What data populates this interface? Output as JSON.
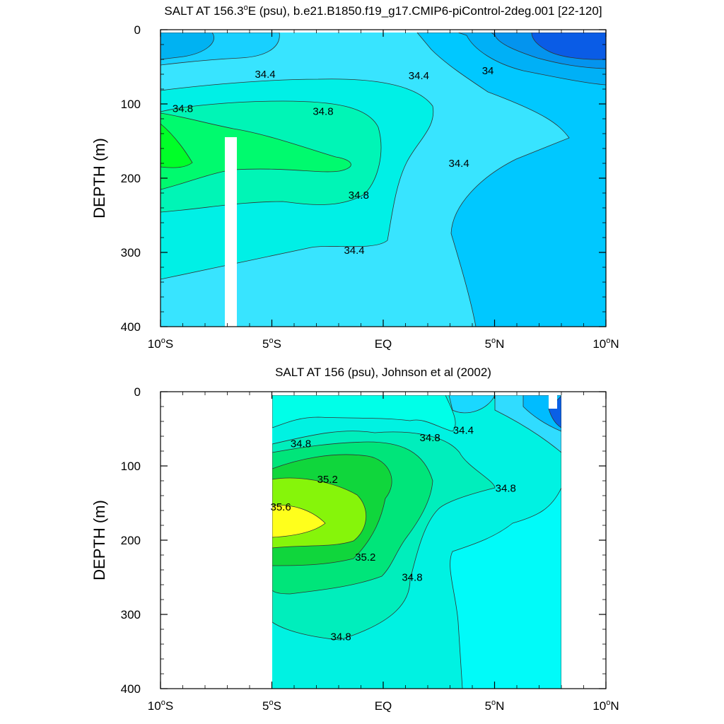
{
  "chart_data": [
    {
      "type": "contour",
      "title": "SALT AT 156.3°E (psu), b.e21.B1850.f19_g17.CMIP6-piControl-2deg.001 [22-120]",
      "title_main": "SALT AT 156.3",
      "title_sup": "o",
      "title_rest": "E (psu), b.e21.B1850.f19_g17.CMIP6-piControl-2deg.001 [22-120]",
      "xlabel": "",
      "ylabel": "DEPTH (m)",
      "xlim": [
        -10,
        10
      ],
      "ylim": [
        400,
        0
      ],
      "x_ticks": [
        {
          "value": -10,
          "label": "10",
          "sup": "o",
          "hemi": "S"
        },
        {
          "value": -5,
          "label": "5",
          "sup": "o",
          "hemi": "S"
        },
        {
          "value": 0,
          "label": "EQ",
          "sup": "",
          "hemi": ""
        },
        {
          "value": 5,
          "label": "5",
          "sup": "o",
          "hemi": "N"
        },
        {
          "value": 10,
          "label": "10",
          "sup": "o",
          "hemi": "N"
        }
      ],
      "y_ticks": [
        "0",
        "100",
        "200",
        "300",
        "400"
      ],
      "contour_labels": [
        {
          "text": "34.4",
          "lon": -5.3,
          "depth": 60
        },
        {
          "text": "34.4",
          "lon": 1.6,
          "depth": 62
        },
        {
          "text": "34",
          "lon": 4.7,
          "depth": 55
        },
        {
          "text": "34.8",
          "lon": -9.0,
          "depth": 106
        },
        {
          "text": "34.8",
          "lon": -2.7,
          "depth": 110
        },
        {
          "text": "34.4",
          "lon": 3.4,
          "depth": 180
        },
        {
          "text": "34.8",
          "lon": -1.1,
          "depth": 223
        },
        {
          "text": "34.4",
          "lon": -1.3,
          "depth": 297
        }
      ]
    },
    {
      "type": "contour",
      "title": "SALT AT 156 (psu), Johnson et al (2002)",
      "xlabel": "",
      "ylabel": "DEPTH (m)",
      "xlim": [
        -10,
        10
      ],
      "ylim": [
        400,
        0
      ],
      "x_ticks": [
        {
          "value": -10,
          "label": "10",
          "sup": "o",
          "hemi": "S"
        },
        {
          "value": -5,
          "label": "5",
          "sup": "o",
          "hemi": "S"
        },
        {
          "value": 0,
          "label": "EQ",
          "sup": "",
          "hemi": ""
        },
        {
          "value": 5,
          "label": "5",
          "sup": "o",
          "hemi": "N"
        },
        {
          "value": 10,
          "label": "10",
          "sup": "o",
          "hemi": "N"
        }
      ],
      "y_ticks": [
        "0",
        "100",
        "200",
        "300",
        "400"
      ],
      "contour_labels": [
        {
          "text": "34.8",
          "lon": -3.7,
          "depth": 70
        },
        {
          "text": "34.8",
          "lon": 2.1,
          "depth": 62
        },
        {
          "text": "34.4",
          "lon": 3.6,
          "depth": 52
        },
        {
          "text": "35.2",
          "lon": -2.5,
          "depth": 118
        },
        {
          "text": "34.8",
          "lon": 5.5,
          "depth": 130
        },
        {
          "text": "35.6",
          "lon": -4.6,
          "depth": 155
        },
        {
          "text": "35.2",
          "lon": -0.8,
          "depth": 223
        },
        {
          "text": "34.8",
          "lon": 1.3,
          "depth": 250
        },
        {
          "text": "34.8",
          "lon": -1.9,
          "depth": 330
        }
      ]
    }
  ]
}
